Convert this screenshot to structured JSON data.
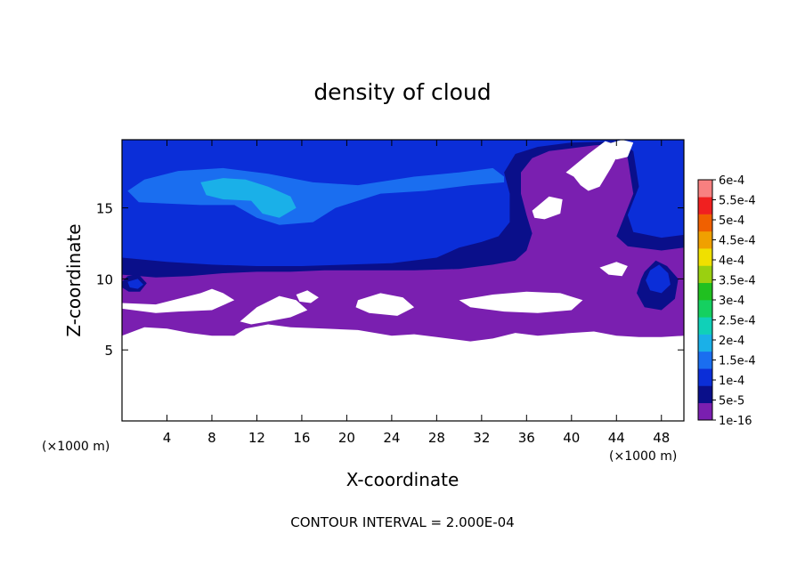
{
  "chart_data": {
    "type": "heatmap",
    "title": "density of cloud",
    "xlabel": "X-coordinate",
    "ylabel": "Z-coordinate",
    "x_unit": "(×1000 m)",
    "z_unit": "(×1000 m)",
    "xlim": [
      0,
      50
    ],
    "ylim": [
      0,
      19.8
    ],
    "x_ticks": [
      4,
      8,
      12,
      16,
      20,
      24,
      28,
      32,
      36,
      40,
      44,
      48
    ],
    "y_ticks": [
      5,
      10,
      15
    ],
    "footer": "CONTOUR INTERVAL = 2.000E-04",
    "colorbar": {
      "labels": [
        "1e-16",
        "5e-5",
        "1e-4",
        "1.5e-4",
        "2e-4",
        "2.5e-4",
        "3e-4",
        "3.5e-4",
        "4e-4",
        "4.5e-4",
        "5e-4",
        "5.5e-4",
        "6e-4"
      ],
      "colors": [
        "#7a1fb0",
        "#0a0f8a",
        "#0b2ed8",
        "#1a6ef0",
        "#1ab0e8",
        "#10d0b8",
        "#15d060",
        "#20c020",
        "#9ad010",
        "#f0e000",
        "#f0a000",
        "#f06000",
        "#f02020",
        "#f88080"
      ]
    },
    "regions": [
      {
        "level": 0,
        "points": [
          [
            0,
            6.0
          ],
          [
            2,
            6.6
          ],
          [
            4,
            6.5
          ],
          [
            6,
            6.2
          ],
          [
            8,
            6.0
          ],
          [
            10,
            6.0
          ],
          [
            11,
            6.5
          ],
          [
            13,
            6.8
          ],
          [
            15,
            6.6
          ],
          [
            18,
            6.5
          ],
          [
            21,
            6.4
          ],
          [
            24,
            6.0
          ],
          [
            26,
            6.1
          ],
          [
            28,
            5.9
          ],
          [
            31,
            5.6
          ],
          [
            33,
            5.8
          ],
          [
            35,
            6.2
          ],
          [
            37,
            6.0
          ],
          [
            40,
            6.2
          ],
          [
            42,
            6.3
          ],
          [
            44,
            6.0
          ],
          [
            46,
            5.9
          ],
          [
            48,
            5.9
          ],
          [
            50,
            6.0
          ],
          [
            50,
            19.8
          ],
          [
            0,
            19.8
          ]
        ]
      },
      {
        "level": 1,
        "points": [
          [
            0,
            10.3
          ],
          [
            3,
            10.1
          ],
          [
            6,
            10.2
          ],
          [
            9,
            10.4
          ],
          [
            12,
            10.5
          ],
          [
            15,
            10.5
          ],
          [
            18,
            10.6
          ],
          [
            22,
            10.6
          ],
          [
            26,
            10.6
          ],
          [
            30,
            10.7
          ],
          [
            33,
            11.0
          ],
          [
            35,
            11.3
          ],
          [
            36,
            12.0
          ],
          [
            36.5,
            13.2
          ],
          [
            36,
            14.5
          ],
          [
            35.5,
            16.0
          ],
          [
            35.5,
            17.5
          ],
          [
            36.5,
            18.5
          ],
          [
            38,
            19.0
          ],
          [
            40,
            19.2
          ],
          [
            42,
            19.4
          ],
          [
            44,
            19.5
          ],
          [
            45,
            18.5
          ],
          [
            45.5,
            16.0
          ],
          [
            44.5,
            14.0
          ],
          [
            44,
            13.0
          ],
          [
            45,
            12.3
          ],
          [
            48,
            12.0
          ],
          [
            50,
            12.2
          ],
          [
            50,
            19.8
          ],
          [
            0,
            19.8
          ]
        ]
      },
      {
        "level": 2,
        "points": [
          [
            0,
            11.5
          ],
          [
            4,
            11.2
          ],
          [
            8,
            11.0
          ],
          [
            12,
            10.9
          ],
          [
            16,
            10.9
          ],
          [
            20,
            11.0
          ],
          [
            24,
            11.1
          ],
          [
            28,
            11.5
          ],
          [
            30,
            12.2
          ],
          [
            32,
            12.6
          ],
          [
            33.5,
            13.0
          ],
          [
            34.5,
            14.0
          ],
          [
            34.5,
            16.0
          ],
          [
            34,
            17.5
          ],
          [
            35,
            18.8
          ],
          [
            37,
            19.3
          ],
          [
            40,
            19.6
          ],
          [
            44,
            19.7
          ],
          [
            45.5,
            19.0
          ],
          [
            46,
            16.5
          ],
          [
            45,
            14.5
          ],
          [
            45.5,
            13.3
          ],
          [
            48,
            12.9
          ],
          [
            50,
            13.1
          ],
          [
            50,
            19.8
          ],
          [
            0,
            19.8
          ]
        ]
      },
      {
        "level": 3,
        "points": [
          [
            0.5,
            16.2
          ],
          [
            2,
            17.0
          ],
          [
            5,
            17.6
          ],
          [
            9,
            17.8
          ],
          [
            13,
            17.4
          ],
          [
            17,
            16.8
          ],
          [
            21,
            16.6
          ],
          [
            26,
            17.2
          ],
          [
            30,
            17.5
          ],
          [
            33,
            17.8
          ],
          [
            34,
            17.2
          ],
          [
            34,
            16.8
          ],
          [
            31,
            16.6
          ],
          [
            27,
            16.2
          ],
          [
            23,
            16.0
          ],
          [
            19,
            15.0
          ],
          [
            17,
            14.0
          ],
          [
            14,
            13.8
          ],
          [
            12,
            14.3
          ],
          [
            10,
            15.2
          ],
          [
            7,
            15.2
          ],
          [
            4,
            15.3
          ],
          [
            1.5,
            15.4
          ]
        ]
      },
      {
        "level": 4,
        "points": [
          [
            7,
            16.8
          ],
          [
            9,
            17.1
          ],
          [
            11,
            17.0
          ],
          [
            13,
            16.5
          ],
          [
            15,
            15.8
          ],
          [
            15.5,
            15.0
          ],
          [
            14,
            14.3
          ],
          [
            12.5,
            14.6
          ],
          [
            11.5,
            15.5
          ],
          [
            9,
            15.6
          ],
          [
            7.5,
            15.9
          ]
        ]
      },
      {
        "level": 1,
        "points": [
          [
            46.5,
            10.5
          ],
          [
            47.5,
            11.3
          ],
          [
            48.5,
            10.9
          ],
          [
            49.5,
            10.0
          ],
          [
            49.2,
            8.6
          ],
          [
            48,
            7.8
          ],
          [
            46.5,
            8.0
          ],
          [
            45.8,
            9.0
          ],
          [
            46.2,
            10.0
          ]
        ]
      },
      {
        "level": 2,
        "points": [
          [
            47,
            10.6
          ],
          [
            47.8,
            11.0
          ],
          [
            48.6,
            10.4
          ],
          [
            48.8,
            9.6
          ],
          [
            48,
            9.0
          ],
          [
            47,
            9.2
          ],
          [
            46.6,
            9.9
          ]
        ]
      },
      {
        "level": 1,
        "points": [
          [
            0,
            9.8
          ],
          [
            0.5,
            10.2
          ],
          [
            1.5,
            10.3
          ],
          [
            2.2,
            9.7
          ],
          [
            1.6,
            9.1
          ],
          [
            0.6,
            9.1
          ],
          [
            0,
            9.4
          ]
        ]
      },
      {
        "level": 2,
        "points": [
          [
            0.5,
            9.8
          ],
          [
            1.4,
            10.0
          ],
          [
            1.9,
            9.6
          ],
          [
            1.4,
            9.3
          ],
          [
            0.7,
            9.4
          ]
        ]
      }
    ],
    "holes": [
      {
        "points": [
          [
            0,
            8.3
          ],
          [
            3,
            8.2
          ],
          [
            5,
            8.6
          ],
          [
            7,
            9.0
          ],
          [
            8,
            9.3
          ],
          [
            9,
            9.0
          ],
          [
            10,
            8.5
          ],
          [
            8,
            7.8
          ],
          [
            5,
            7.7
          ],
          [
            3,
            7.6
          ],
          [
            0,
            7.9
          ]
        ]
      },
      {
        "points": [
          [
            10.5,
            7.0
          ],
          [
            12,
            8.0
          ],
          [
            14,
            8.8
          ],
          [
            15.5,
            8.5
          ],
          [
            16.5,
            7.8
          ],
          [
            15,
            7.3
          ],
          [
            13,
            7.0
          ],
          [
            11.5,
            6.8
          ]
        ]
      },
      {
        "points": [
          [
            15.5,
            8.9
          ],
          [
            16.5,
            9.2
          ],
          [
            17.5,
            8.7
          ],
          [
            16.8,
            8.3
          ],
          [
            15.8,
            8.4
          ]
        ]
      },
      {
        "points": [
          [
            21,
            8.5
          ],
          [
            23,
            9.0
          ],
          [
            25,
            8.7
          ],
          [
            26,
            8.0
          ],
          [
            24.5,
            7.4
          ],
          [
            22,
            7.6
          ],
          [
            20.8,
            8.0
          ]
        ]
      },
      {
        "points": [
          [
            30,
            8.5
          ],
          [
            33,
            8.9
          ],
          [
            36,
            9.1
          ],
          [
            39,
            9.0
          ],
          [
            41,
            8.5
          ],
          [
            40,
            7.8
          ],
          [
            37,
            7.6
          ],
          [
            34,
            7.7
          ],
          [
            31,
            8.0
          ]
        ]
      },
      {
        "points": [
          [
            42.5,
            10.8
          ],
          [
            44,
            11.2
          ],
          [
            45,
            10.9
          ],
          [
            44.5,
            10.2
          ],
          [
            43.3,
            10.3
          ]
        ]
      },
      {
        "points": [
          [
            39.5,
            17.5
          ],
          [
            41.5,
            18.8
          ],
          [
            43,
            19.7
          ],
          [
            44.5,
            19.3
          ],
          [
            43.5,
            17.8
          ],
          [
            42.5,
            16.5
          ],
          [
            41.5,
            16.2
          ],
          [
            40.8,
            16.6
          ],
          [
            40.2,
            17.2
          ]
        ]
      },
      {
        "points": [
          [
            36.5,
            14.8
          ],
          [
            38,
            15.8
          ],
          [
            39.2,
            15.6
          ],
          [
            39,
            14.6
          ],
          [
            37.6,
            14.2
          ],
          [
            36.7,
            14.3
          ]
        ]
      },
      {
        "points": [
          [
            43.2,
            19.5
          ],
          [
            44.5,
            19.8
          ],
          [
            45.5,
            19.6
          ],
          [
            45,
            18.6
          ],
          [
            44,
            18.4
          ],
          [
            43.2,
            18.8
          ]
        ]
      }
    ]
  }
}
